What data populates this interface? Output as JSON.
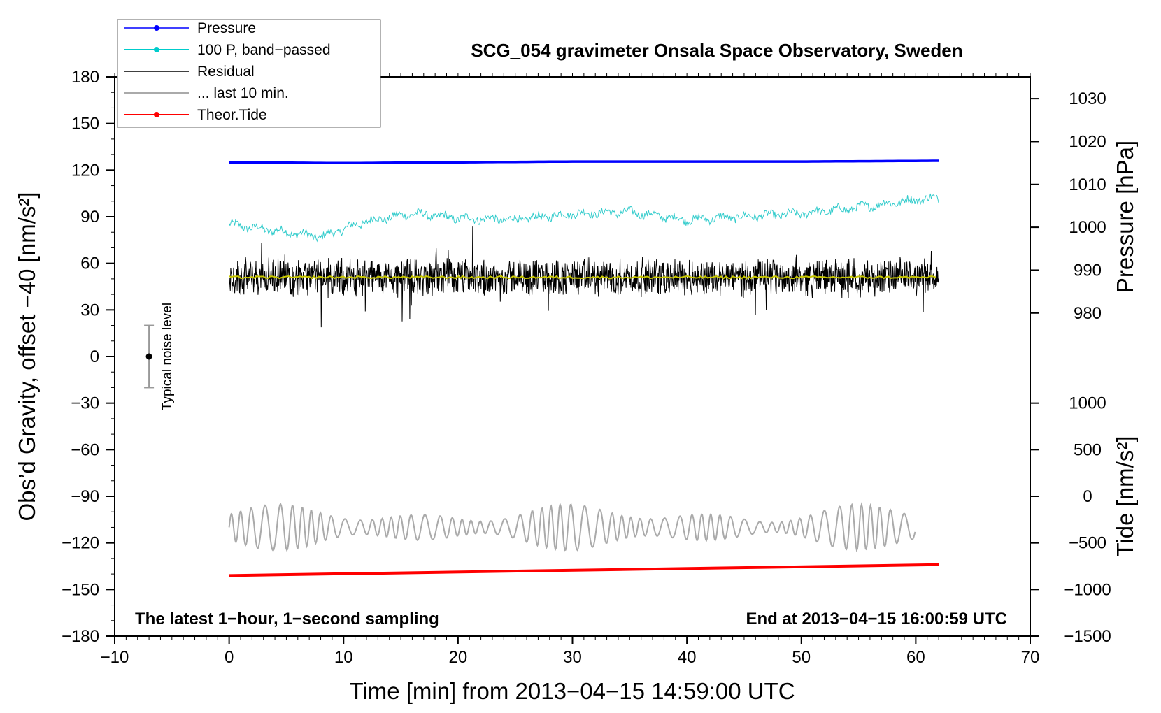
{
  "chart_data": {
    "type": "line",
    "title": "SCG_054 gravimeter Onsala Space Observatory, Sweden",
    "xlabel": "Time [min] from 2013−04−15 14:59:00 UTC",
    "ylabel_left": "Obs’d Gravity, offset −40 [nm/s²]",
    "ylabel_pressure": "Pressure [hPa]",
    "ylabel_tide": "Tide [nm/s²]",
    "xlim": [
      -10,
      70
    ],
    "ylim": [
      -180,
      180
    ],
    "x_ticks": [
      -10,
      0,
      10,
      20,
      30,
      40,
      50,
      60,
      70
    ],
    "x_tick_labels": [
      "−10",
      "0",
      "10",
      "20",
      "30",
      "40",
      "50",
      "60",
      "70"
    ],
    "y_ticks": [
      180,
      150,
      120,
      90,
      60,
      30,
      0,
      -30,
      -60,
      -90,
      -120,
      -150,
      -180
    ],
    "y_tick_labels": [
      "180",
      "150",
      "120",
      "90",
      "60",
      "30",
      "0",
      "−30",
      "−60",
      "−90",
      "−120",
      "−150",
      "−180"
    ],
    "pressure_axis": {
      "ticks": [
        1030,
        1020,
        1010,
        1000,
        990,
        980
      ],
      "tick_labels": [
        "1030",
        "1020",
        "1010",
        "1000",
        "990",
        "980"
      ],
      "map_value": [
        980,
        1030
      ],
      "map_gravity": [
        28,
        166
      ]
    },
    "tide_axis": {
      "ticks": [
        1000,
        500,
        0,
        -500,
        -1000,
        -1500
      ],
      "tick_labels": [
        "1000",
        "500",
        "0",
        "−500",
        "−1000",
        "−1500"
      ],
      "map_value": [
        -1500,
        1000
      ],
      "map_gravity": [
        -180,
        -30
      ]
    },
    "legend": [
      {
        "label": "Pressure",
        "color": "#0000ff",
        "marker": true
      },
      {
        "label": "100 P, band−passed",
        "color": "#00cccc",
        "marker": true
      },
      {
        "label": "Residual",
        "color": "#000000",
        "marker": false
      },
      {
        "label": "... last 10 min.",
        "color": "#aaaaaa",
        "marker": false
      },
      {
        "label": "Theor.Tide",
        "color": "#ff0000",
        "marker": true
      }
    ],
    "series": [
      {
        "name": "Pressure",
        "color": "#0000ff",
        "x": [
          0,
          10,
          20,
          30,
          40,
          50,
          62
        ],
        "values": [
          125,
          124.5,
          125,
          125.5,
          125.5,
          125.5,
          126
        ]
      },
      {
        "name": "100 P, band−passed",
        "color": "#33cccc",
        "x": [
          0,
          5,
          8,
          12,
          16,
          20,
          25,
          30,
          35,
          40,
          45,
          50,
          55,
          60,
          62
        ],
        "values": [
          85,
          80,
          77,
          87,
          92,
          89,
          88,
          92,
          93,
          88,
          90,
          92,
          96,
          101,
          102
        ]
      },
      {
        "name": "Residual",
        "color": "#000000",
        "x": [
          0,
          62
        ],
        "values": [
          51,
          51
        ],
        "noise_amplitude": 14
      },
      {
        "name": "Residual mean",
        "color": "#c8c800",
        "x": [
          0,
          62
        ],
        "values": [
          51,
          51
        ]
      },
      {
        "name": "... last 10 min.",
        "color": "#aaaaaa",
        "x": [
          0,
          60
        ],
        "values": [
          -110,
          -110
        ],
        "oscillation_amplitude": 15
      },
      {
        "name": "Theor.Tide",
        "color": "#ff0000",
        "x": [
          0,
          62
        ],
        "values": [
          -141,
          -134
        ]
      }
    ],
    "noise_marker": {
      "label": "Typical noise level",
      "x": -7,
      "center": 0,
      "low": -20,
      "high": 20
    },
    "annotations": {
      "left": "The latest 1−hour, 1−second sampling",
      "right": "End at 2013−04−15 16:00:59 UTC"
    }
  }
}
